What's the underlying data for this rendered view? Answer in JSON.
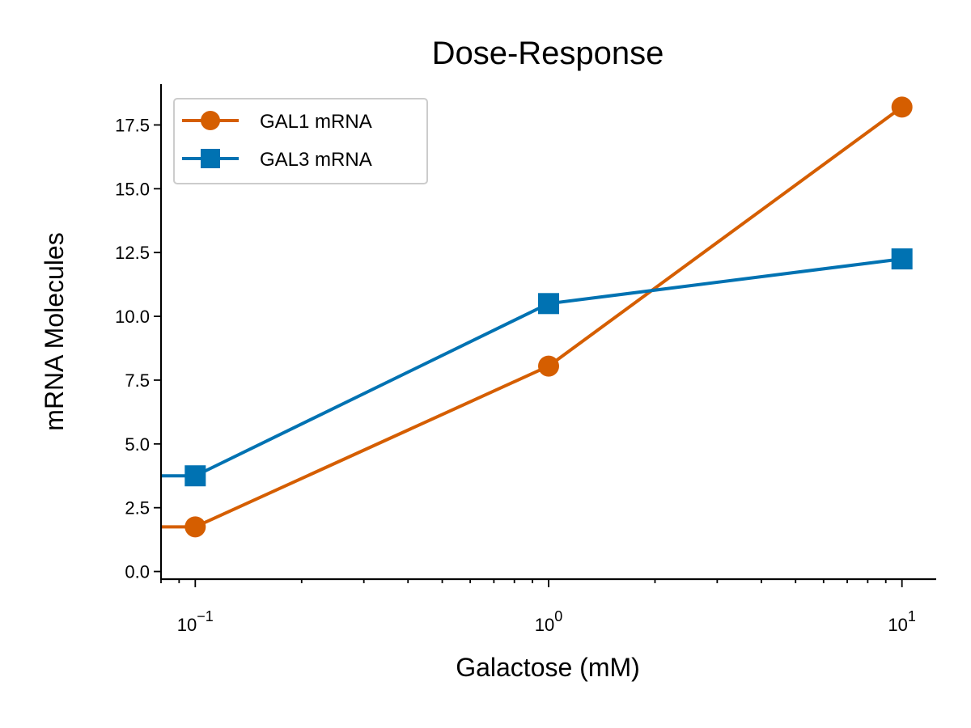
{
  "chart_data": {
    "type": "line",
    "title": "Dose-Response",
    "xlabel": "Galactose (mM)",
    "ylabel": "mRNA Molecules",
    "xscale": "log",
    "x": [
      0.1,
      1,
      10
    ],
    "xlim": [
      0.08,
      12.5
    ],
    "ylim": [
      -0.3,
      19.1
    ],
    "yticks": [
      0.0,
      2.5,
      5.0,
      7.5,
      10.0,
      12.5,
      15.0,
      17.5
    ],
    "ytick_labels": [
      "0.0",
      "2.5",
      "5.0",
      "7.5",
      "10.0",
      "12.5",
      "15.0",
      "17.5"
    ],
    "xticks": [
      0.1,
      1,
      10
    ],
    "xtick_labels": [
      {
        "base": "10",
        "exp": "−1"
      },
      {
        "base": "10",
        "exp": "0"
      },
      {
        "base": "10",
        "exp": "1"
      }
    ],
    "legend_position": "top-left",
    "grid": false,
    "series": [
      {
        "name": "GAL1 mRNA",
        "values": [
          1.75,
          8.05,
          18.2
        ],
        "color": "#d55e00",
        "marker": "circle",
        "left_extension_value": 1.75
      },
      {
        "name": "GAL3 mRNA",
        "values": [
          3.75,
          10.5,
          12.25
        ],
        "color": "#0072b2",
        "marker": "square",
        "left_extension_value": 3.75
      }
    ]
  }
}
